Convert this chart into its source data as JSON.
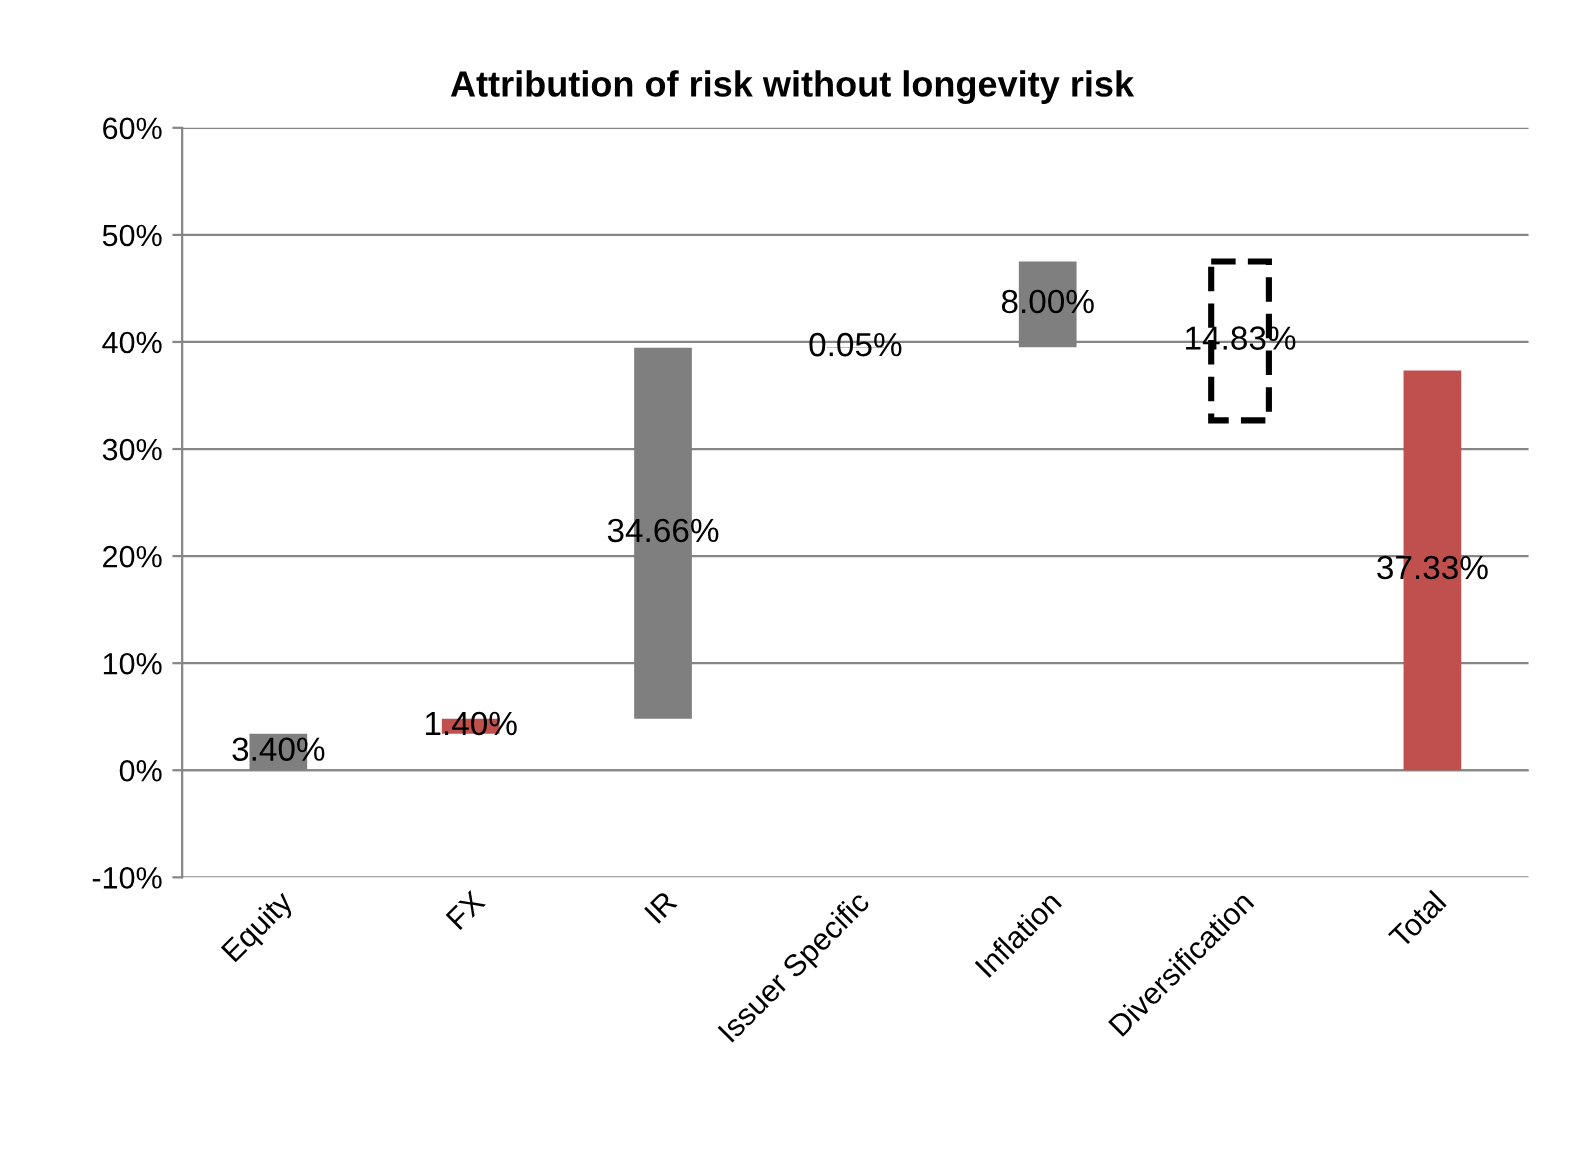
{
  "chart_data": {
    "type": "bar",
    "title": "Attribution of risk without longevity risk",
    "categories": [
      "Equity",
      "FX",
      "IR",
      "Issuer Specific",
      "Inflation",
      "Diversification",
      "Total"
    ],
    "values": [
      3.4,
      1.4,
      34.66,
      0.05,
      8.0,
      -14.83,
      37.33
    ],
    "base": [
      0,
      3.4,
      4.8,
      39.46,
      39.51,
      47.51,
      0
    ],
    "colors": [
      "#7f7f7f",
      "#c0504d",
      "#7f7f7f",
      "#7f7f7f",
      "#7f7f7f",
      "#000000",
      "#c0504d"
    ],
    "value_labels": [
      "3.40%",
      "1.40%",
      "34.66%",
      "0.05%",
      "8.00%",
      "14.83%",
      "37.33%"
    ],
    "ylim": [
      -10,
      60
    ],
    "yticks": [
      {
        "value": -10,
        "label": "-10%"
      },
      {
        "value": 0,
        "label": "0%"
      },
      {
        "value": 10,
        "label": "10%"
      },
      {
        "value": 20,
        "label": "20%"
      },
      {
        "value": 30,
        "label": "30%"
      },
      {
        "value": 40,
        "label": "40%"
      },
      {
        "value": 50,
        "label": "50%"
      },
      {
        "value": 60,
        "label": "60%"
      }
    ],
    "grid": "y"
  }
}
